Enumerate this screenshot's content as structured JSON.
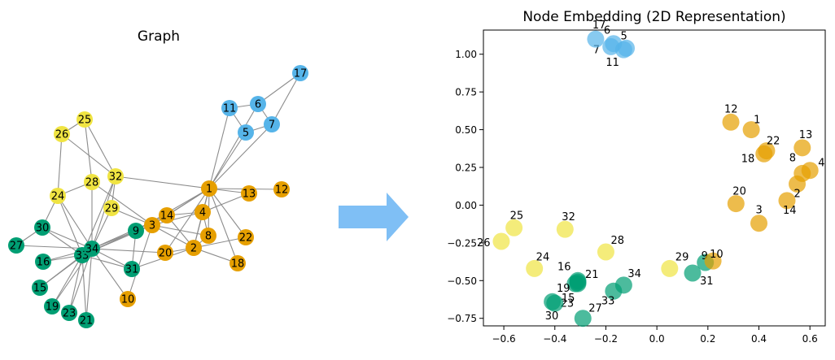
{
  "colors": {
    "group_blue": "#56b4e9",
    "group_orange": "#e69f00",
    "group_yellow": "#f0e442",
    "group_green": "#009e73",
    "edge": "#8c8c8c",
    "arrow": "#7fbff5"
  },
  "left_panel": {
    "title": "Graph",
    "nodes": [
      {
        "id": "1",
        "group": "orange"
      },
      {
        "id": "2",
        "group": "orange"
      },
      {
        "id": "3",
        "group": "orange"
      },
      {
        "id": "4",
        "group": "orange"
      },
      {
        "id": "5",
        "group": "blue"
      },
      {
        "id": "6",
        "group": "blue"
      },
      {
        "id": "7",
        "group": "blue"
      },
      {
        "id": "8",
        "group": "orange"
      },
      {
        "id": "9",
        "group": "green"
      },
      {
        "id": "10",
        "group": "orange"
      },
      {
        "id": "11",
        "group": "blue"
      },
      {
        "id": "12",
        "group": "orange"
      },
      {
        "id": "13",
        "group": "orange"
      },
      {
        "id": "14",
        "group": "orange"
      },
      {
        "id": "15",
        "group": "green"
      },
      {
        "id": "16",
        "group": "green"
      },
      {
        "id": "17",
        "group": "blue"
      },
      {
        "id": "18",
        "group": "orange"
      },
      {
        "id": "19",
        "group": "green"
      },
      {
        "id": "20",
        "group": "orange"
      },
      {
        "id": "21",
        "group": "green"
      },
      {
        "id": "22",
        "group": "orange"
      },
      {
        "id": "23",
        "group": "green"
      },
      {
        "id": "24",
        "group": "yellow"
      },
      {
        "id": "25",
        "group": "yellow"
      },
      {
        "id": "26",
        "group": "yellow"
      },
      {
        "id": "27",
        "group": "green"
      },
      {
        "id": "28",
        "group": "yellow"
      },
      {
        "id": "29",
        "group": "yellow"
      },
      {
        "id": "30",
        "group": "green"
      },
      {
        "id": "31",
        "group": "green"
      },
      {
        "id": "32",
        "group": "yellow"
      },
      {
        "id": "33",
        "group": "green"
      },
      {
        "id": "34",
        "group": "green"
      }
    ],
    "edges": [
      [
        "1",
        "2"
      ],
      [
        "1",
        "3"
      ],
      [
        "1",
        "4"
      ],
      [
        "1",
        "5"
      ],
      [
        "1",
        "6"
      ],
      [
        "1",
        "7"
      ],
      [
        "1",
        "8"
      ],
      [
        "1",
        "9"
      ],
      [
        "1",
        "11"
      ],
      [
        "1",
        "12"
      ],
      [
        "1",
        "13"
      ],
      [
        "1",
        "14"
      ],
      [
        "1",
        "18"
      ],
      [
        "1",
        "20"
      ],
      [
        "1",
        "22"
      ],
      [
        "1",
        "32"
      ],
      [
        "2",
        "3"
      ],
      [
        "2",
        "4"
      ],
      [
        "2",
        "8"
      ],
      [
        "2",
        "14"
      ],
      [
        "2",
        "18"
      ],
      [
        "2",
        "20"
      ],
      [
        "2",
        "22"
      ],
      [
        "2",
        "31"
      ],
      [
        "3",
        "4"
      ],
      [
        "3",
        "8"
      ],
      [
        "3",
        "9"
      ],
      [
        "3",
        "10"
      ],
      [
        "3",
        "14"
      ],
      [
        "3",
        "28"
      ],
      [
        "3",
        "29"
      ],
      [
        "3",
        "33"
      ],
      [
        "4",
        "8"
      ],
      [
        "4",
        "13"
      ],
      [
        "4",
        "14"
      ],
      [
        "5",
        "7"
      ],
      [
        "5",
        "11"
      ],
      [
        "6",
        "7"
      ],
      [
        "6",
        "11"
      ],
      [
        "6",
        "17"
      ],
      [
        "7",
        "17"
      ],
      [
        "9",
        "31"
      ],
      [
        "9",
        "33"
      ],
      [
        "9",
        "34"
      ],
      [
        "10",
        "34"
      ],
      [
        "14",
        "34"
      ],
      [
        "20",
        "34"
      ],
      [
        "15",
        "33"
      ],
      [
        "15",
        "34"
      ],
      [
        "16",
        "33"
      ],
      [
        "16",
        "34"
      ],
      [
        "19",
        "33"
      ],
      [
        "19",
        "34"
      ],
      [
        "21",
        "33"
      ],
      [
        "21",
        "34"
      ],
      [
        "23",
        "33"
      ],
      [
        "23",
        "34"
      ],
      [
        "24",
        "26"
      ],
      [
        "24",
        "28"
      ],
      [
        "24",
        "30"
      ],
      [
        "24",
        "33"
      ],
      [
        "24",
        "34"
      ],
      [
        "25",
        "26"
      ],
      [
        "25",
        "28"
      ],
      [
        "25",
        "32"
      ],
      [
        "26",
        "32"
      ],
      [
        "27",
        "30"
      ],
      [
        "27",
        "34"
      ],
      [
        "28",
        "34"
      ],
      [
        "29",
        "32"
      ],
      [
        "29",
        "34"
      ],
      [
        "30",
        "33"
      ],
      [
        "30",
        "34"
      ],
      [
        "31",
        "33"
      ],
      [
        "31",
        "34"
      ],
      [
        "32",
        "33"
      ],
      [
        "32",
        "34"
      ],
      [
        "33",
        "34"
      ]
    ]
  },
  "right_panel": {
    "chart_data": {
      "type": "scatter",
      "title": "Node Embedding (2D Representation)",
      "xlim": [
        -0.68,
        0.66
      ],
      "ylim": [
        -0.8,
        1.16
      ],
      "xticks": [
        -0.6,
        -0.4,
        -0.2,
        0.0,
        0.2,
        0.4,
        0.6
      ],
      "xtick_labels": [
        "−0.6",
        "−0.4",
        "−0.2",
        "0.0",
        "0.2",
        "0.4",
        "0.6"
      ],
      "yticks": [
        -0.75,
        -0.5,
        -0.25,
        0.0,
        0.25,
        0.5,
        0.75,
        1.0
      ],
      "ytick_labels": [
        "−0.75",
        "−0.50",
        "−0.25",
        "0.00",
        "0.25",
        "0.50",
        "0.75",
        "1.00"
      ],
      "grid": false,
      "points": [
        {
          "label": "1",
          "x": 0.37,
          "y": 0.5,
          "group": "orange"
        },
        {
          "label": "2",
          "x": 0.55,
          "y": 0.14,
          "group": "orange"
        },
        {
          "label": "3",
          "x": 0.4,
          "y": -0.12,
          "group": "orange"
        },
        {
          "label": "4",
          "x": 0.6,
          "y": 0.23,
          "group": "orange"
        },
        {
          "label": "5",
          "x": -0.12,
          "y": 1.04,
          "group": "blue"
        },
        {
          "label": "6",
          "x": -0.17,
          "y": 1.07,
          "group": "blue"
        },
        {
          "label": "7",
          "x": -0.18,
          "y": 1.05,
          "group": "blue"
        },
        {
          "label": "8",
          "x": 0.57,
          "y": 0.21,
          "group": "orange"
        },
        {
          "label": "9",
          "x": 0.19,
          "y": -0.38,
          "group": "green"
        },
        {
          "label": "10",
          "x": 0.22,
          "y": -0.37,
          "group": "orange"
        },
        {
          "label": "11",
          "x": -0.13,
          "y": 1.03,
          "group": "blue"
        },
        {
          "label": "12",
          "x": 0.29,
          "y": 0.55,
          "group": "orange"
        },
        {
          "label": "13",
          "x": 0.57,
          "y": 0.38,
          "group": "orange"
        },
        {
          "label": "14",
          "x": 0.51,
          "y": 0.03,
          "group": "orange"
        },
        {
          "label": "15",
          "x": -0.32,
          "y": -0.52,
          "group": "green"
        },
        {
          "label": "16",
          "x": -0.31,
          "y": -0.5,
          "group": "green"
        },
        {
          "label": "17",
          "x": -0.24,
          "y": 1.1,
          "group": "blue"
        },
        {
          "label": "18",
          "x": 0.42,
          "y": 0.34,
          "group": "orange"
        },
        {
          "label": "19",
          "x": -0.31,
          "y": -0.52,
          "group": "green"
        },
        {
          "label": "20",
          "x": 0.31,
          "y": 0.01,
          "group": "orange"
        },
        {
          "label": "21",
          "x": -0.31,
          "y": -0.51,
          "group": "green"
        },
        {
          "label": "22",
          "x": 0.43,
          "y": 0.36,
          "group": "orange"
        },
        {
          "label": "23",
          "x": -0.41,
          "y": -0.64,
          "group": "green"
        },
        {
          "label": "24",
          "x": -0.48,
          "y": -0.42,
          "group": "yellow"
        },
        {
          "label": "25",
          "x": -0.56,
          "y": -0.15,
          "group": "yellow"
        },
        {
          "label": "26",
          "x": -0.61,
          "y": -0.24,
          "group": "yellow"
        },
        {
          "label": "27",
          "x": -0.29,
          "y": -0.75,
          "group": "green"
        },
        {
          "label": "28",
          "x": -0.2,
          "y": -0.31,
          "group": "yellow"
        },
        {
          "label": "29",
          "x": 0.05,
          "y": -0.42,
          "group": "yellow"
        },
        {
          "label": "30",
          "x": -0.4,
          "y": -0.65,
          "group": "green"
        },
        {
          "label": "31",
          "x": 0.14,
          "y": -0.45,
          "group": "green"
        },
        {
          "label": "32",
          "x": -0.36,
          "y": -0.16,
          "group": "yellow"
        },
        {
          "label": "33",
          "x": -0.17,
          "y": -0.57,
          "group": "green"
        },
        {
          "label": "34",
          "x": -0.13,
          "y": -0.53,
          "group": "green"
        }
      ]
    }
  }
}
